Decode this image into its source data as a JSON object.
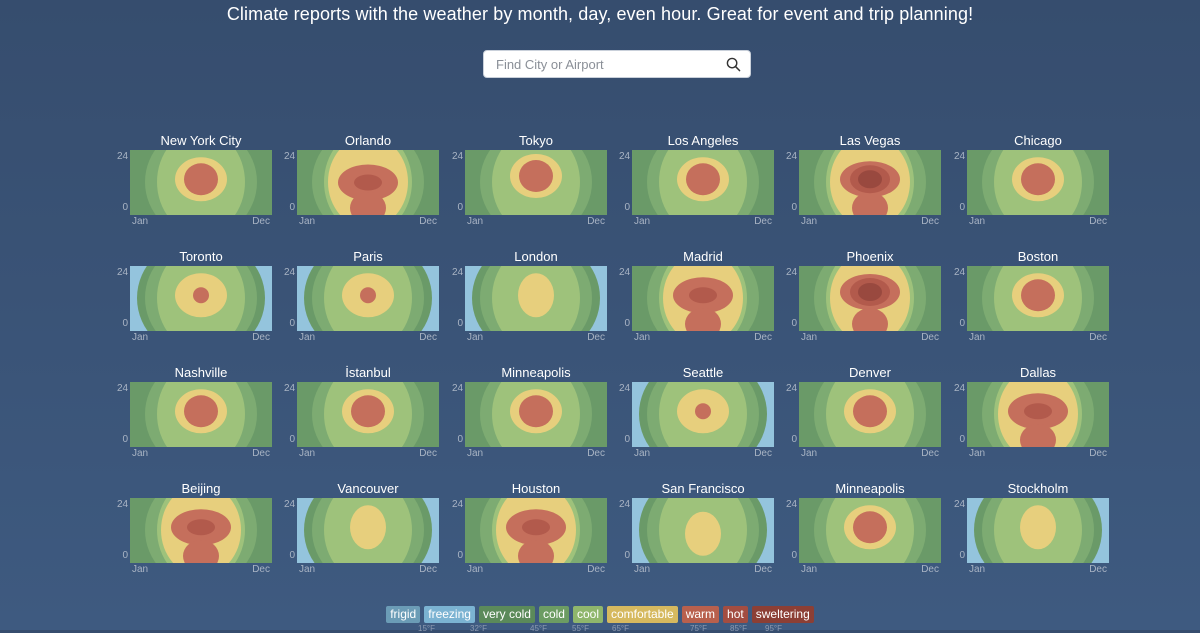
{
  "headline": "Climate reports with the weather by month, day, even hour. Great for event and trip planning!",
  "search": {
    "placeholder": "Find City or Airport",
    "value": ""
  },
  "axis": {
    "y_top": "24",
    "y_bottom": "0",
    "x_start": "Jan",
    "x_end": "Dec"
  },
  "palette": {
    "frigid": "#8ab6cc",
    "freezing": "#94c4dd",
    "very_cold": "#6a9a68",
    "cold": "#7dab72",
    "cool": "#9ec27b",
    "comfortable": "#e7cf7d",
    "warm": "#c56f5c",
    "hot": "#b25a4c",
    "sweltering": "#99493f"
  },
  "cities": [
    {
      "name": "New York City",
      "level": 3,
      "peak": 0.55
    },
    {
      "name": "Orlando",
      "level": 4,
      "peak": 0.5
    },
    {
      "name": "Tokyo",
      "level": 3,
      "peak": 0.6
    },
    {
      "name": "Los Angeles",
      "level": 3,
      "peak": 0.55
    },
    {
      "name": "Las Vegas",
      "level": 5,
      "peak": 0.55
    },
    {
      "name": "Chicago",
      "level": 3,
      "peak": 0.55
    },
    {
      "name": "Toronto",
      "level": 2,
      "peak": 0.55
    },
    {
      "name": "Paris",
      "level": 2,
      "peak": 0.55
    },
    {
      "name": "London",
      "level": 1,
      "peak": 0.55
    },
    {
      "name": "Madrid",
      "level": 4,
      "peak": 0.55
    },
    {
      "name": "Phoenix",
      "level": 5,
      "peak": 0.6
    },
    {
      "name": "Boston",
      "level": 3,
      "peak": 0.55
    },
    {
      "name": "Nashville",
      "level": 3,
      "peak": 0.55
    },
    {
      "name": "İstanbul",
      "level": 3,
      "peak": 0.55
    },
    {
      "name": "Minneapolis",
      "level": 3,
      "peak": 0.55
    },
    {
      "name": "Seattle",
      "level": 2,
      "peak": 0.55
    },
    {
      "name": "Denver",
      "level": 3,
      "peak": 0.55
    },
    {
      "name": "Dallas",
      "level": 4,
      "peak": 0.55
    },
    {
      "name": "Beijing",
      "level": 4,
      "peak": 0.55
    },
    {
      "name": "Vancouver",
      "level": 1,
      "peak": 0.55
    },
    {
      "name": "Houston",
      "level": 4,
      "peak": 0.55
    },
    {
      "name": "San Francisco",
      "level": 1,
      "peak": 0.45
    },
    {
      "name": "Minneapolis",
      "level": 3,
      "peak": 0.55
    },
    {
      "name": "Stockholm",
      "level": 1,
      "peak": 0.55
    }
  ],
  "legend": [
    {
      "label": "frigid",
      "color": "#6b9cb6"
    },
    {
      "label": "freezing",
      "color": "#7bb3d2"
    },
    {
      "label": "very cold",
      "color": "#5b8a5a"
    },
    {
      "label": "cold",
      "color": "#6c9c63"
    },
    {
      "label": "cool",
      "color": "#8fb66c"
    },
    {
      "label": "comfortable",
      "color": "#d6b95f"
    },
    {
      "label": "warm",
      "color": "#b8604d"
    },
    {
      "label": "hot",
      "color": "#a34d41"
    },
    {
      "label": "sweltering",
      "color": "#8c3f35"
    }
  ],
  "legend_ticks": [
    "15°F",
    "32°F",
    "45°F",
    "55°F",
    "65°F",
    "75°F",
    "85°F",
    "95°F"
  ]
}
